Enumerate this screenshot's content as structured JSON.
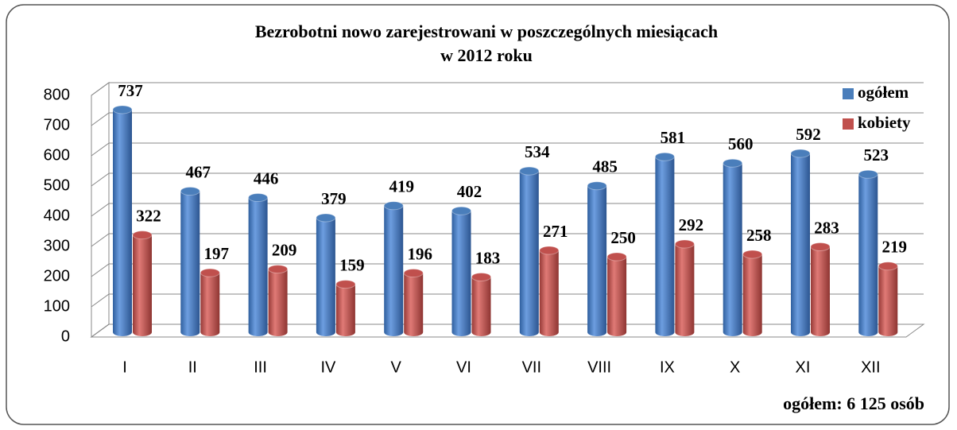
{
  "chart_data": {
    "type": "bar",
    "title": "Bezrobotni nowo zarejestrowani w poszczególnych miesiącach",
    "subtitle": "w 2012 roku",
    "categories": [
      "I",
      "II",
      "III",
      "IV",
      "V",
      "VI",
      "VII",
      "VIII",
      "IX",
      "X",
      "XI",
      "XII"
    ],
    "series": [
      {
        "name": "ogółem",
        "color": "#4a7ebb",
        "values": [
          737,
          467,
          446,
          379,
          419,
          402,
          534,
          485,
          581,
          560,
          592,
          523
        ]
      },
      {
        "name": "kobiety",
        "color": "#c0504d",
        "values": [
          322,
          197,
          209,
          159,
          196,
          183,
          271,
          250,
          292,
          258,
          283,
          219
        ]
      }
    ],
    "ylim": [
      0,
      800
    ],
    "yticks": [
      0,
      100,
      200,
      300,
      400,
      500,
      600,
      700,
      800
    ],
    "grid": true,
    "legend": "top-right",
    "annotation": "ogółem: 6 125 osób"
  }
}
